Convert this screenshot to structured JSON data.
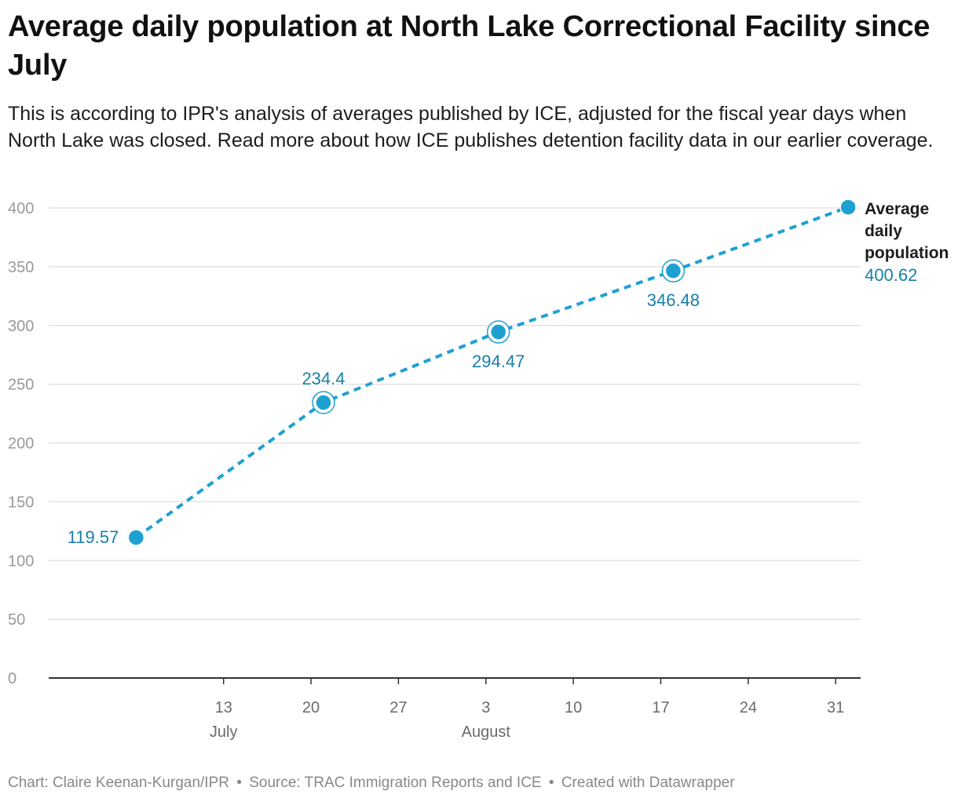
{
  "title": "Average daily population at North Lake Correctional Facility since July",
  "subtitle": "This is according to IPR's analysis of averages published by ICE, adjusted for the fiscal year days when North Lake was closed. Read more about how ICE publishes detention facility data in our earlier coverage.",
  "footer": {
    "chart_credit": "Chart: Claire Keenan-Kurgan/IPR",
    "source": "Source: TRAC Immigration Reports and ICE",
    "created_with": "Created with Datawrapper",
    "separator": "•"
  },
  "colors": {
    "line": "#1da1d2",
    "value_label": "#1780a8",
    "gridline": "#e3e3e3",
    "axis": "#333333",
    "tick_label": "#999999",
    "x_tick_label": "#6b6b6b"
  },
  "chart_data": {
    "type": "line",
    "title": "Average daily population at North Lake Correctional Facility since July",
    "xlabel": "",
    "ylabel": "",
    "ylim": [
      0,
      400
    ],
    "y_ticks": [
      0,
      50,
      100,
      150,
      200,
      250,
      300,
      350,
      400
    ],
    "x_domain": [
      "2024-06-29",
      "2024-09-02"
    ],
    "x_ticks": [
      {
        "date": "2024-07-13",
        "day": "13",
        "month": "July"
      },
      {
        "date": "2024-07-20",
        "day": "20",
        "month": ""
      },
      {
        "date": "2024-07-27",
        "day": "27",
        "month": ""
      },
      {
        "date": "2024-08-03",
        "day": "3",
        "month": "August"
      },
      {
        "date": "2024-08-10",
        "day": "10",
        "month": ""
      },
      {
        "date": "2024-08-17",
        "day": "17",
        "month": ""
      },
      {
        "date": "2024-08-24",
        "day": "24",
        "month": ""
      },
      {
        "date": "2024-08-31",
        "day": "31",
        "month": ""
      }
    ],
    "series": [
      {
        "name": "Average daily population",
        "line_style": "dashed",
        "points": [
          {
            "date": "2024-07-06",
            "value": 119.57,
            "label": "119.57",
            "label_pos": "left"
          },
          {
            "date": "2024-07-21",
            "value": 234.4,
            "label": "234.4",
            "label_pos": "above",
            "highlight": true
          },
          {
            "date": "2024-08-04",
            "value": 294.47,
            "label": "294.47",
            "label_pos": "below",
            "highlight": true
          },
          {
            "date": "2024-08-18",
            "value": 346.48,
            "label": "346.48",
            "label_pos": "below",
            "highlight": true
          },
          {
            "date": "2024-09-01",
            "value": 400.62,
            "label": "400.62",
            "label_pos": "right"
          }
        ]
      }
    ],
    "end_label": {
      "lines": [
        "Average",
        "daily",
        "population"
      ],
      "value": "400.62"
    },
    "grid": true,
    "legend": "none"
  }
}
